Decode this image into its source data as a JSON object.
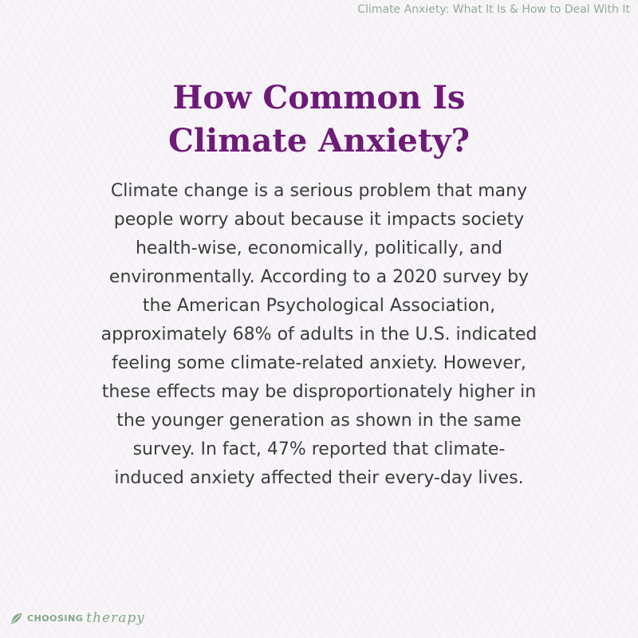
{
  "header": {
    "caption": "Climate Anxiety: What It Is & How to Deal With It"
  },
  "title": {
    "line1": "How Common Is",
    "line2": "Climate Anxiety?"
  },
  "body": {
    "lines": [
      "Climate change is a serious problem that many",
      "people worry about because it impacts society",
      "health-wise, economically, politically, and",
      "environmentally. According to a 2020 survey by",
      "the American Psychological Association,",
      "approximately 68% of adults in the U.S. indicated",
      "feeling some climate-related anxiety. However,",
      "these effects may be disproportionately higher in",
      "the younger generation as shown in the same",
      "survey. In fact, 47% reported that climate-",
      "induced anxiety affected their every-day lives."
    ]
  },
  "logo": {
    "word1": "CHOOSING",
    "word2": "therapy",
    "icon": "leaf-icon"
  },
  "colors": {
    "background": "#f8f5f9",
    "title": "#6e1a78",
    "body_text": "#3c3c3c",
    "brand_green": "#7fa882"
  }
}
